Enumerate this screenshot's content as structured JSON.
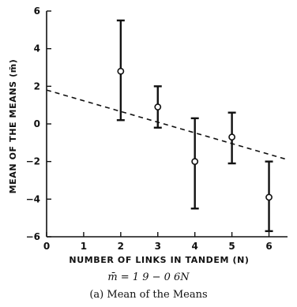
{
  "chart_data": {
    "type": "scatter",
    "xlabel": "NUMBER OF LINKS IN TANDEM (N)",
    "ylabel": "MEAN OF THE MEANS (m̄)",
    "xlim": [
      0,
      6.5
    ],
    "ylim": [
      -6,
      6
    ],
    "x_ticks": [
      0,
      1,
      2,
      3,
      4,
      5,
      6
    ],
    "y_ticks": [
      -6,
      -4,
      -2,
      0,
      2,
      4,
      6
    ],
    "x_tick_labels": [
      "0",
      "1",
      "2",
      "3",
      "4",
      "5",
      "6"
    ],
    "y_tick_labels": [
      "−6",
      "−4",
      "−2",
      "0",
      "2",
      "4",
      "6"
    ],
    "grid": false,
    "points": [
      {
        "x": 2,
        "y": 2.8,
        "low": 0.2,
        "high": 5.5
      },
      {
        "x": 3,
        "y": 0.9,
        "low": -0.2,
        "high": 2.0
      },
      {
        "x": 4,
        "y": -2.0,
        "low": -4.5,
        "high": 0.3
      },
      {
        "x": 5,
        "y": -0.7,
        "low": -2.1,
        "high": 0.6
      },
      {
        "x": 6,
        "y": -3.9,
        "low": -5.7,
        "high": -2.0
      }
    ],
    "trend_line": {
      "style": "dashed",
      "x": [
        0,
        6.5
      ],
      "y": [
        1.8,
        -1.9
      ]
    }
  },
  "equation": "m̄ = 1 9 − 0 6N",
  "caption": "(a) Mean of the Means"
}
